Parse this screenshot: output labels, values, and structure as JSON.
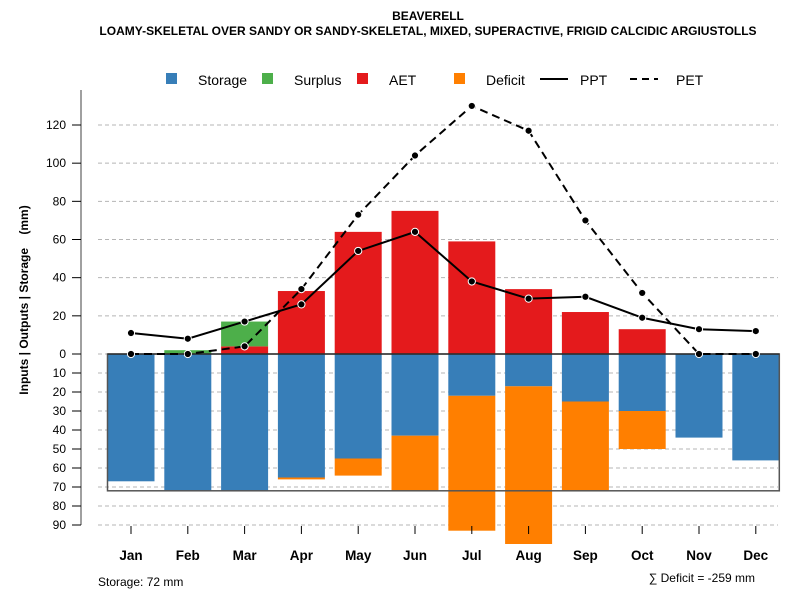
{
  "chart_data": {
    "type": "bar",
    "title": "BEAVERELL",
    "subtitle": "LOAMY-SKELETAL OVER SANDY OR SANDY-SKELETAL, MIXED, SUPERACTIVE, FRIGID CALCIDIC ARGIUSTOLLS",
    "xlabel": "",
    "ylabel": "Inputs | Outputs | Storage    (mm)",
    "categories": [
      "Jan",
      "Feb",
      "Mar",
      "Apr",
      "May",
      "Jun",
      "Jul",
      "Aug",
      "Sep",
      "Oct",
      "Nov",
      "Dec"
    ],
    "ylim": [
      -90,
      130
    ],
    "y_ticks_positive": [
      0,
      20,
      40,
      60,
      80,
      100,
      120
    ],
    "y_ticks_negative": [
      10,
      20,
      30,
      40,
      50,
      60,
      70,
      80,
      90
    ],
    "grid": true,
    "legend_position": "top",
    "legend": [
      {
        "name": "Storage",
        "kind": "box",
        "color": "#377EB8"
      },
      {
        "name": "Surplus",
        "kind": "box",
        "color": "#4DAF4A"
      },
      {
        "name": "AET",
        "kind": "box",
        "color": "#E41A1C"
      },
      {
        "name": "Deficit",
        "kind": "box",
        "color": "#FF7F00"
      },
      {
        "name": "PPT",
        "kind": "solid-line",
        "color": "#000000"
      },
      {
        "name": "PET",
        "kind": "dashed-line",
        "color": "#000000"
      }
    ],
    "series": [
      {
        "name": "AET",
        "type": "bar-positive",
        "color": "#E41A1C",
        "values": [
          0,
          0,
          4,
          33,
          64,
          75,
          59,
          34,
          22,
          13,
          0,
          0
        ]
      },
      {
        "name": "Surplus",
        "type": "bar-positive-stacked",
        "color": "#4DAF4A",
        "values": [
          0,
          2,
          13,
          0,
          0,
          0,
          0,
          0,
          0,
          0,
          0,
          0
        ]
      },
      {
        "name": "Storage",
        "type": "bar-negative",
        "color": "#377EB8",
        "values": [
          67,
          72,
          72,
          65,
          55,
          43,
          22,
          17,
          25,
          30,
          44,
          56
        ]
      },
      {
        "name": "Deficit",
        "type": "bar-negative-stacked",
        "color": "#FF7F00",
        "values": [
          0,
          0,
          0,
          1,
          9,
          29,
          71,
          83,
          47,
          20,
          0,
          0
        ]
      },
      {
        "name": "PPT",
        "type": "line",
        "style": "solid",
        "color": "#000000",
        "values": [
          11,
          8,
          17,
          26,
          54,
          64,
          38,
          29,
          30,
          19,
          13,
          12
        ]
      },
      {
        "name": "PET",
        "type": "line",
        "style": "dashed",
        "color": "#000000",
        "values": [
          0,
          0,
          4,
          34,
          73,
          104,
          130,
          117,
          70,
          32,
          0,
          0
        ]
      }
    ],
    "storage_capacity": 72,
    "annotations": {
      "storage": "Storage: 72 mm",
      "deficit_sum": "∑ Deficit = -259 mm"
    }
  }
}
